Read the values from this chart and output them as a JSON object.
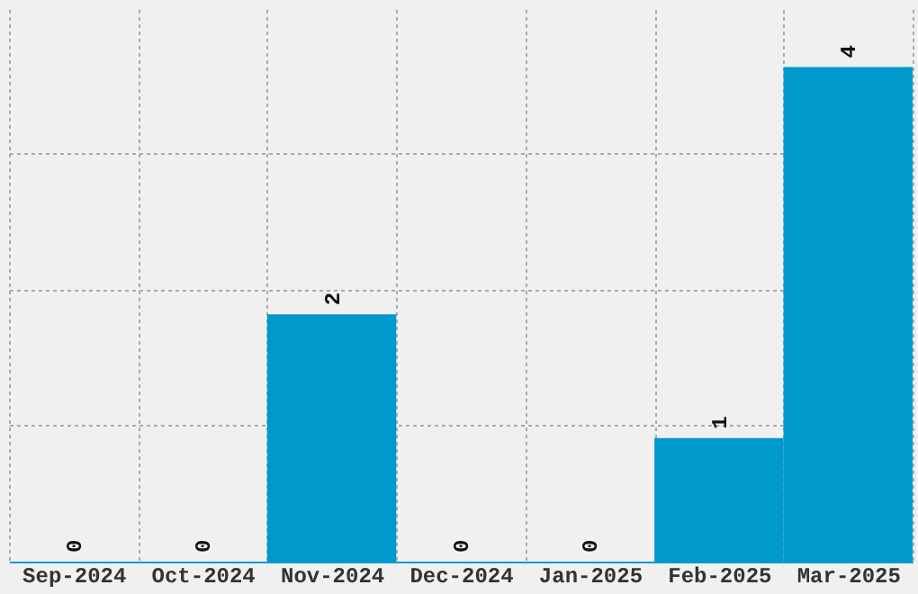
{
  "chart_data": {
    "type": "bar",
    "categories": [
      "Sep-2024",
      "Oct-2024",
      "Nov-2024",
      "Dec-2024",
      "Jan-2025",
      "Feb-2025",
      "Mar-2025"
    ],
    "values": [
      0,
      0,
      2,
      0,
      0,
      1,
      4
    ],
    "color": "#0099cc",
    "ylim": [
      0,
      4.47
    ],
    "yticks": [
      {
        "value": 1.1,
        "label": null
      },
      {
        "value": 2.2,
        "label": null
      },
      {
        "value": 3.3,
        "label": null
      }
    ],
    "data_labels": true,
    "grid": true,
    "tick_labels": "x"
  }
}
